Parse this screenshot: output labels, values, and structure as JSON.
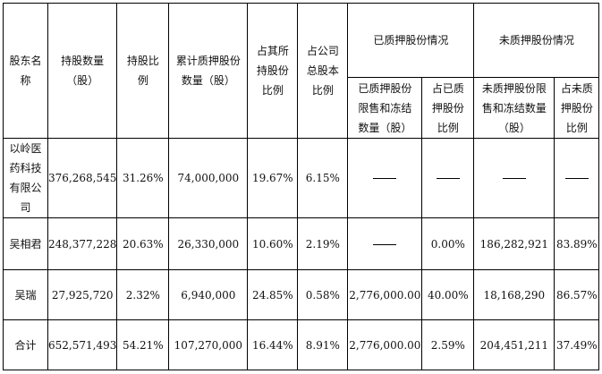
{
  "table": {
    "headers": {
      "shareholder": "股东名称",
      "shares_held": "持股数量（股）",
      "holding_ratio": "持股比例",
      "cumulative_pledged": "累计质押股份数量（股）",
      "pct_of_own": "占其所持股份比例",
      "pct_of_total": "占公司总股本比例",
      "pledged_group": "已质押股份情况",
      "unpledged_group": "未质押股份情况",
      "pledged_restricted": "已质押股份限售和冻结数量（股）",
      "pledged_pct": "占已质押股份比例",
      "unpledged_restricted": "未质押股份限售和冻结数量（股）",
      "unpledged_pct": "占未质押股份比例"
    },
    "rows": [
      {
        "name": "以岭医药科技有限公司",
        "shares": "376,268,545",
        "ratio": "31.26%",
        "pledged": "74,000,000",
        "own_pct": "19.67%",
        "total_pct": "6.15%",
        "p_restricted": "——",
        "p_pct": "——",
        "u_restricted": "——",
        "u_pct": "——"
      },
      {
        "name": "吴相君",
        "shares": "248,377,228",
        "ratio": "20.63%",
        "pledged": "26,330,000",
        "own_pct": "10.60%",
        "total_pct": "2.19%",
        "p_restricted": "——",
        "p_pct": "0.00%",
        "u_restricted": "186,282,921",
        "u_pct": "83.89%"
      },
      {
        "name": "吴瑞",
        "shares": "27,925,720",
        "ratio": "2.32%",
        "pledged": "6,940,000",
        "own_pct": "24.85%",
        "total_pct": "0.58%",
        "p_restricted": "2,776,000.00",
        "p_pct": "40.00%",
        "u_restricted": "18,168,290",
        "u_pct": "86.57%"
      },
      {
        "name": "合计",
        "shares": "652,571,493",
        "ratio": "54.21%",
        "pledged": "107,270,000",
        "own_pct": "16.44%",
        "total_pct": "8.91%",
        "p_restricted": "2,776,000.00",
        "p_pct": "2.59%",
        "u_restricted": "204,451,211",
        "u_pct": "37.49%"
      }
    ]
  }
}
